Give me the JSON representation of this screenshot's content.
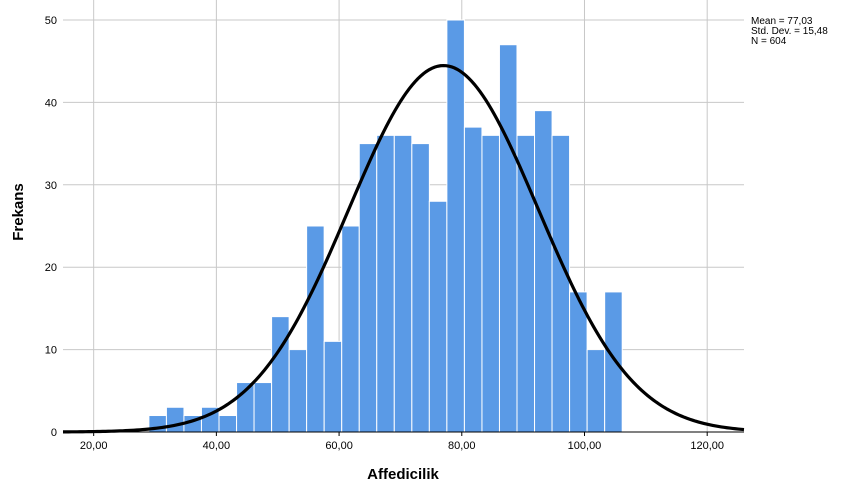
{
  "chart_data": {
    "type": "bar",
    "xlabel": "Affedicilik",
    "ylabel": "Frekans",
    "xlim": [
      15,
      126
    ],
    "ylim": [
      0,
      50
    ],
    "x_ticks": [
      "20,00",
      "40,00",
      "60,00",
      "80,00",
      "100,00",
      "120,00"
    ],
    "x_tick_values": [
      20,
      40,
      60,
      80,
      100,
      120
    ],
    "y_ticks": [
      "0",
      "10",
      "20",
      "30",
      "40",
      "50"
    ],
    "y_tick_values": [
      0,
      10,
      20,
      30,
      40,
      50
    ],
    "bin_width": 2.857,
    "bin_starts": [
      29.0,
      31.86,
      34.71,
      37.57,
      40.43,
      43.29,
      46.14,
      49.0,
      51.86,
      54.71,
      57.57,
      60.43,
      63.29,
      66.14,
      69.0,
      71.86,
      74.71,
      77.57,
      80.43,
      83.29,
      86.14,
      89.0,
      91.86,
      94.71,
      97.57,
      100.43,
      103.29
    ],
    "values": [
      2,
      3,
      2,
      3,
      2,
      6,
      6,
      14,
      10,
      25,
      11,
      25,
      35,
      36,
      36,
      35,
      28,
      50,
      37,
      36,
      47,
      36,
      39,
      36,
      17,
      10,
      17
    ],
    "bar_color": "#5a9ae6",
    "bar_edge_color": "#ffffff",
    "curve": {
      "type": "normal",
      "mean": 77.03,
      "std": 15.48,
      "n": 604,
      "color": "#000000"
    },
    "grid": true,
    "stats": {
      "mean": "Mean = 77,03",
      "std": "Std. Dev. = 15,48",
      "n": "N = 604"
    }
  }
}
